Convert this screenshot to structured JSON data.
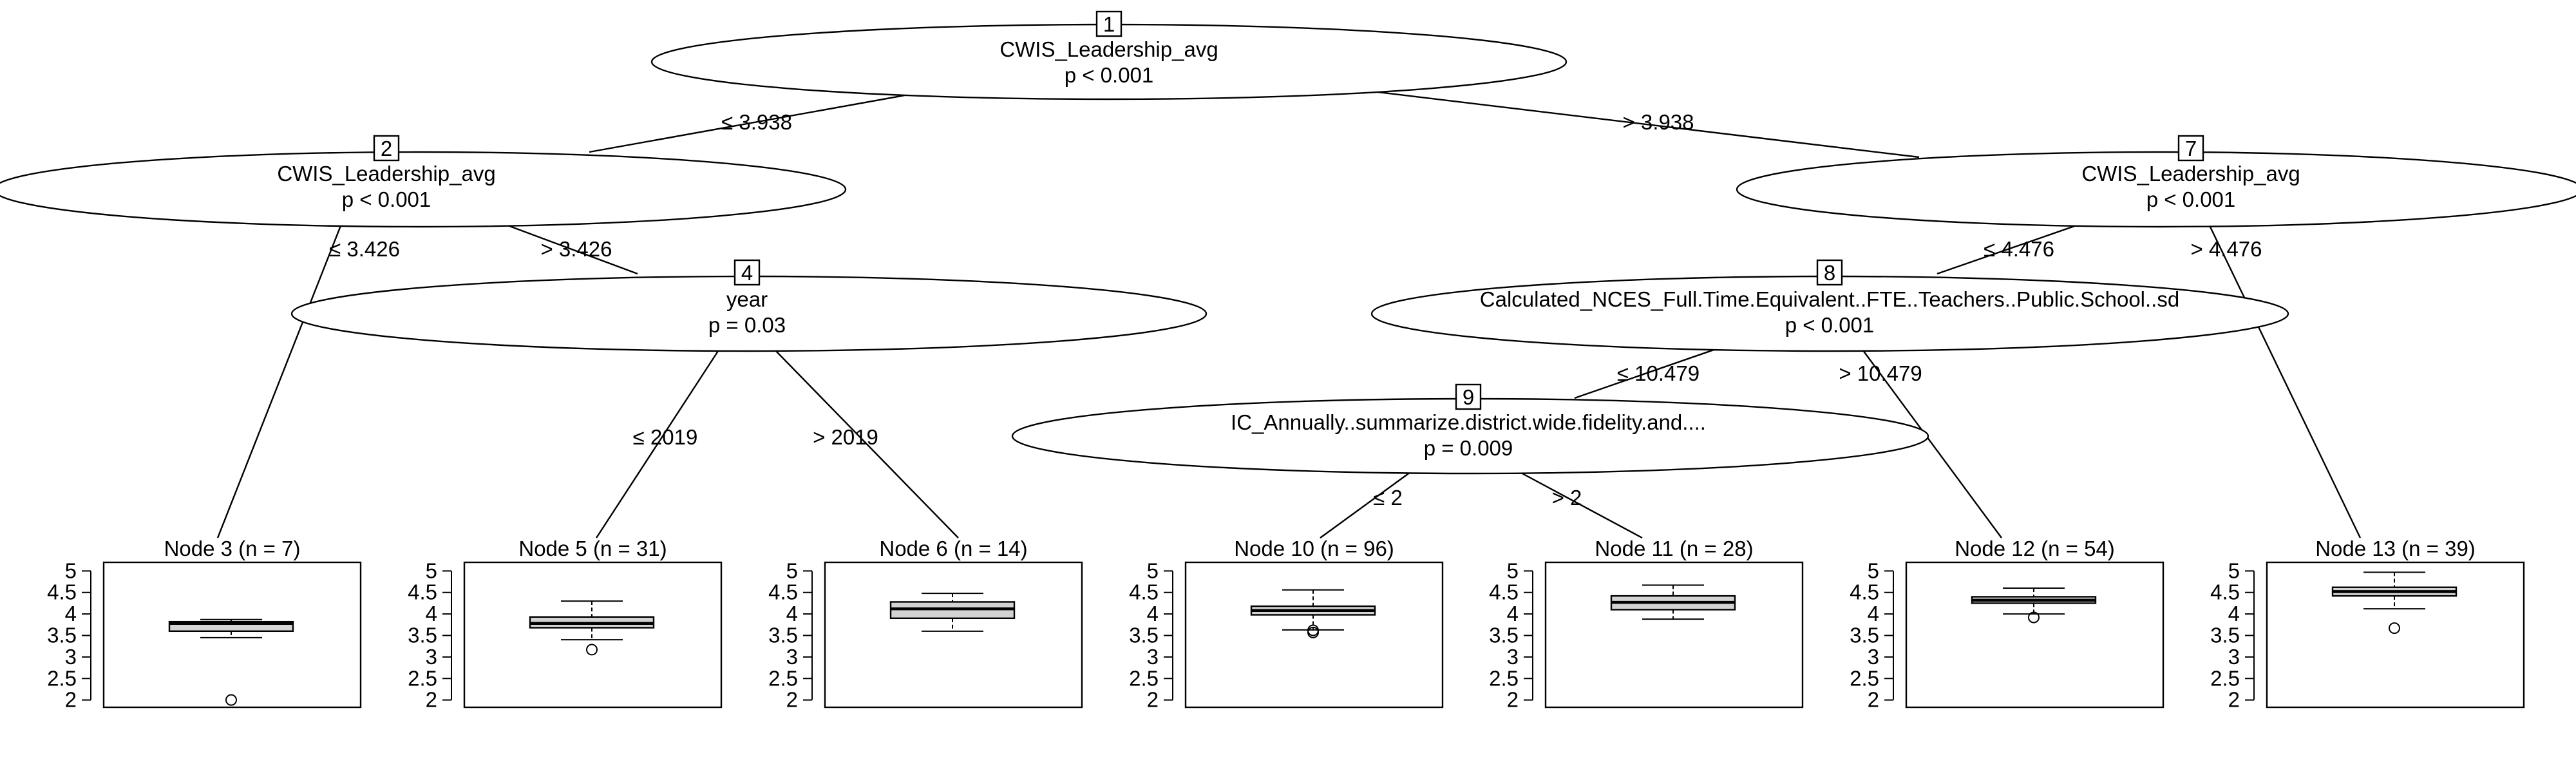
{
  "tree": {
    "inner_nodes": [
      {
        "id": "1",
        "variable": "CWIS_Leadership_avg",
        "p_value": "p < 0.001"
      },
      {
        "id": "2",
        "variable": "CWIS_Leadership_avg",
        "p_value": "p < 0.001"
      },
      {
        "id": "4",
        "variable": "year",
        "p_value": "p = 0.03"
      },
      {
        "id": "7",
        "variable": "CWIS_Leadership_avg",
        "p_value": "p < 0.001"
      },
      {
        "id": "8",
        "variable": "Calculated_NCES_Full.Time.Equivalent..FTE..Teachers..Public.School..sd",
        "p_value": "p < 0.001"
      },
      {
        "id": "9",
        "variable": "IC_Annually..summarize.district.wide.fidelity.and....",
        "p_value": "p = 0.009"
      }
    ],
    "edges": [
      {
        "from": "1",
        "to": "2",
        "label": "≤ 3.938"
      },
      {
        "from": "1",
        "to": "7",
        "label": "> 3.938"
      },
      {
        "from": "2",
        "to": "3",
        "label": "≤ 3.426"
      },
      {
        "from": "2",
        "to": "4",
        "label": "> 3.426"
      },
      {
        "from": "4",
        "to": "5",
        "label": "≤ 2019"
      },
      {
        "from": "4",
        "to": "6",
        "label": "> 2019"
      },
      {
        "from": "7",
        "to": "8",
        "label": "≤ 4.476"
      },
      {
        "from": "7",
        "to": "13",
        "label": "> 4.476"
      },
      {
        "from": "8",
        "to": "9",
        "label": "≤ 10.479"
      },
      {
        "from": "8",
        "to": "12",
        "label": "> 10.479"
      },
      {
        "from": "9",
        "to": "10",
        "label": "≤ 2"
      },
      {
        "from": "9",
        "to": "11",
        "label": "> 2"
      }
    ],
    "terminal_nodes": [
      {
        "id": "3",
        "title": "Node 3 (n = 7)",
        "box": {
          "whisker_low": 3.45,
          "q1": 3.6,
          "median": 3.78,
          "q3": 3.82,
          "whisker_high": 3.87
        },
        "outliers": [
          2.0
        ]
      },
      {
        "id": "5",
        "title": "Node 5 (n = 31)",
        "box": {
          "whisker_low": 3.4,
          "q1": 3.68,
          "median": 3.78,
          "q3": 3.93,
          "whisker_high": 4.3
        },
        "outliers": [
          3.17
        ]
      },
      {
        "id": "6",
        "title": "Node 6 (n = 14)",
        "box": {
          "whisker_low": 3.6,
          "q1": 3.9,
          "median": 4.12,
          "q3": 4.28,
          "whisker_high": 4.48
        },
        "outliers": []
      },
      {
        "id": "10",
        "title": "Node 10 (n = 96)",
        "box": {
          "whisker_low": 3.63,
          "q1": 3.98,
          "median": 4.08,
          "q3": 4.18,
          "whisker_high": 4.56
        },
        "outliers": [
          3.57,
          3.62
        ]
      },
      {
        "id": "11",
        "title": "Node 11 (n = 28)",
        "box": {
          "whisker_low": 3.88,
          "q1": 4.1,
          "median": 4.27,
          "q3": 4.42,
          "whisker_high": 4.67
        },
        "outliers": []
      },
      {
        "id": "12",
        "title": "Node 12 (n = 54)",
        "box": {
          "whisker_low": 4.0,
          "q1": 4.25,
          "median": 4.32,
          "q3": 4.4,
          "whisker_high": 4.6
        },
        "outliers": [
          3.92
        ]
      },
      {
        "id": "13",
        "title": "Node 13 (n = 39)",
        "box": {
          "whisker_low": 4.12,
          "q1": 4.42,
          "median": 4.52,
          "q3": 4.62,
          "whisker_high": 4.97
        },
        "outliers": [
          3.67
        ]
      }
    ],
    "y_axis": {
      "ticks": [
        5,
        4.5,
        4,
        3.5,
        3,
        2.5,
        2
      ],
      "tick_labels": [
        "5",
        "4.5",
        "4",
        "3.5",
        "3",
        "2.5",
        "2"
      ],
      "range": [
        1.83,
        5.2
      ]
    }
  }
}
